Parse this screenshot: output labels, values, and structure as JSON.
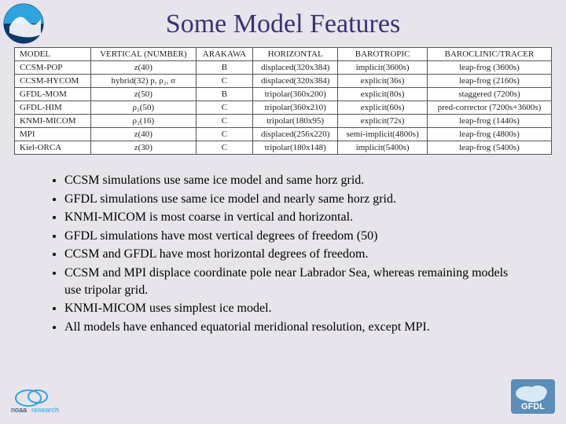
{
  "title": "Some Model Features",
  "table": {
    "columns": [
      "MODEL",
      "VERTICAL (NUMBER)",
      "ARAKAWA",
      "HORIZONTAL",
      "BAROTROPIC",
      "BAROCLINIC/TRACER"
    ],
    "rows": [
      [
        "CCSM-POP",
        "z(40)",
        "B",
        "displaced(320x384)",
        "implicit(3600s)",
        "leap-frog (3600s)"
      ],
      [
        "CCSM-HYCOM",
        "hybrid(32) p, ρ₂, σ",
        "C",
        "displaced(320x384)",
        "explicit(36s)",
        "leap-frog (2160s)"
      ],
      [
        "GFDL-MOM",
        "z(50)",
        "B",
        "tripolar(360x200)",
        "explicit(80s)",
        "staggered (7200s)"
      ],
      [
        "GFDL-HIM",
        "ρ₂(50)",
        "C",
        "tripolar(360x210)",
        "explicit(60s)",
        "pred-corrector (7200s+3600s)"
      ],
      [
        "KNMI-MICOM",
        "ρ₂(16)",
        "C",
        "tripolar(180x95)",
        "explicit(72s)",
        "leap-frog (1440s)"
      ],
      [
        "MPI",
        "z(40)",
        "C",
        "displaced(256x220)",
        "semi-implicit(4800s)",
        "leap-frog (4800s)"
      ],
      [
        "Kiel-ORCA",
        "z(30)",
        "C",
        "tripolar(180x148)",
        "implicit(5400s)",
        "leap-frog (5400s)"
      ]
    ],
    "border_color": "#555555",
    "background_color": "#ffffff",
    "font_size": 11
  },
  "bullets": [
    "CCSM simulations use same ice model and same horz grid.",
    "GFDL simulations use same ice model and nearly same horz grid.",
    "KNMI-MICOM is most coarse in vertical and horizontal.",
    "GFDL simulations have most vertical degrees of freedom (50)",
    "CCSM and GFDL have most horizontal degrees of freedom.",
    "CCSM and MPI displace coordinate pole near Labrador Sea, whereas remaining models use tripolar grid.",
    "KNMI-MICOM uses simplest ice model.",
    "All models have enhanced equatorial meridional resolution, except MPI."
  ],
  "colors": {
    "background": "#e8e4ec",
    "title": "#3b3176",
    "noaa_dark": "#0a3a6a",
    "noaa_light": "#2ea3dd",
    "gfdl_bg": "#5a8db8",
    "gfdl_cloud": "#d8e8f4"
  },
  "logos": {
    "noaa": "noaa-logo",
    "research": "noaa-research-logo",
    "gfdl": "gfdl-logo"
  }
}
